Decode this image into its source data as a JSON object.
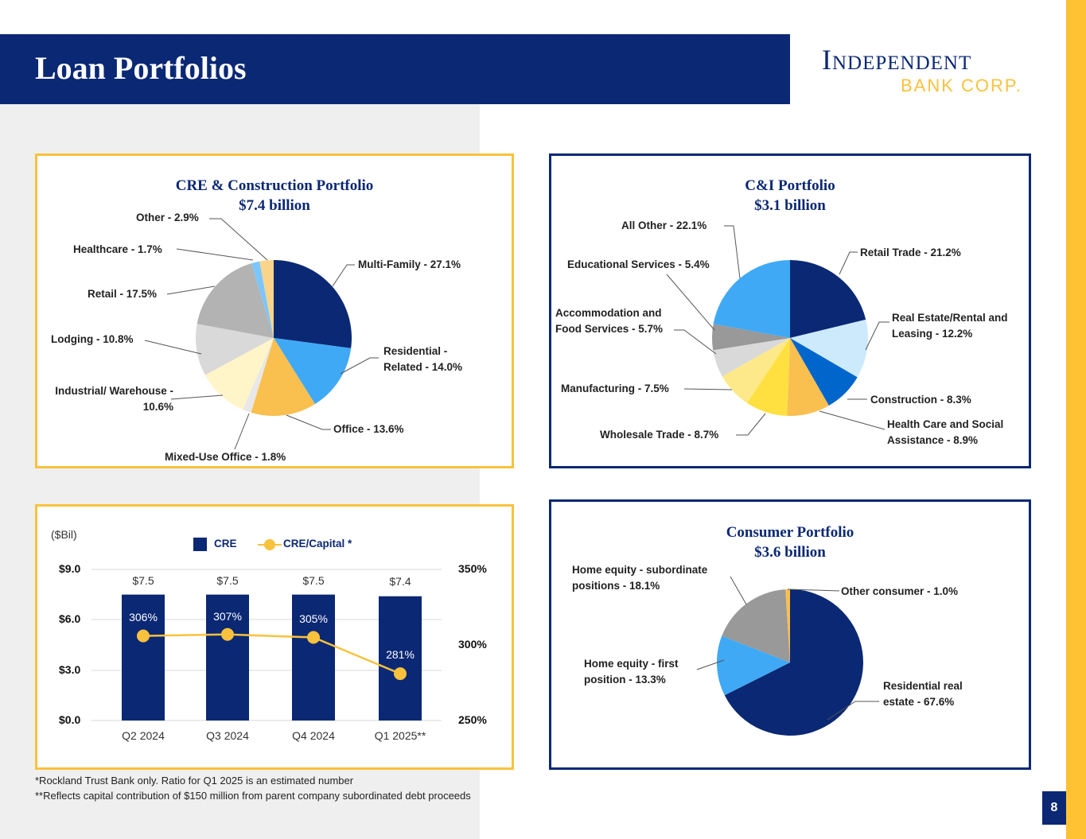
{
  "header": {
    "title": "Loan Portfolios",
    "logo_line1": "Independent",
    "logo_line2": "BANK CORP."
  },
  "page_number": "8",
  "colors": {
    "navy": "#0b2874",
    "gold": "#f9c23c",
    "panel": "#efefef"
  },
  "footnotes": [
    "*Rockland Trust Bank only.  Ratio for Q1 2025 is an estimated number",
    "**Reflects capital contribution of $150 million from parent company subordinated debt proceeds"
  ],
  "chart_data": [
    {
      "type": "pie",
      "title": "CRE & Construction Portfolio",
      "subtitle": "$7.4 billion",
      "slices": [
        {
          "label": "Multi-Family - 27.1%",
          "value": 27.1,
          "color": "#0b2874"
        },
        {
          "label": "Residential - Related - 14.0%",
          "value": 14.0,
          "color": "#3fa9f5"
        },
        {
          "label": "Office - 13.6%",
          "value": 13.6,
          "color": "#f9c04f"
        },
        {
          "label": "Mixed-Use Office - 1.8%",
          "value": 1.8,
          "color": "#e8e8e8"
        },
        {
          "label": "Industrial/ Warehouse - 10.6%",
          "value": 10.6,
          "color": "#fff5c8"
        },
        {
          "label": "Lodging - 10.8%",
          "value": 10.8,
          "color": "#d9d9d9"
        },
        {
          "label": "Retail - 17.5%",
          "value": 17.5,
          "color": "#b3b3b3"
        },
        {
          "label": "Healthcare - 1.7%",
          "value": 1.7,
          "color": "#7cc6ff"
        },
        {
          "label": "Other - 2.9%",
          "value": 2.9,
          "color": "#fad48a"
        }
      ]
    },
    {
      "type": "pie",
      "title": "C&I Portfolio",
      "subtitle": "$3.1 billion",
      "slices": [
        {
          "label": "Retail Trade - 21.2%",
          "value": 21.2,
          "color": "#0b2874"
        },
        {
          "label": "Real Estate/Rental and Leasing - 12.2%",
          "value": 12.2,
          "color": "#cdeafd"
        },
        {
          "label": "Construction - 8.3%",
          "value": 8.3,
          "color": "#0066cc"
        },
        {
          "label": "Health Care and Social Assistance - 8.9%",
          "value": 8.9,
          "color": "#f9c04f"
        },
        {
          "label": "Wholesale Trade - 8.7%",
          "value": 8.7,
          "color": "#ffe040"
        },
        {
          "label": "Manufacturing - 7.5%",
          "value": 7.5,
          "color": "#fde98a"
        },
        {
          "label": "Accommodation and Food Services - 5.7%",
          "value": 5.7,
          "color": "#d9d9d9"
        },
        {
          "label": "Educational Services - 5.4%",
          "value": 5.4,
          "color": "#999999"
        },
        {
          "label": "All Other  - 22.1%",
          "value": 22.1,
          "color": "#3fa9f5"
        }
      ]
    },
    {
      "type": "pie",
      "title": "Consumer Portfolio",
      "subtitle": "$3.6 billion",
      "slices": [
        {
          "label": "Residential real estate - 67.6%",
          "value": 67.6,
          "color": "#0b2874"
        },
        {
          "label": "Home equity - first position - 13.3%",
          "value": 13.3,
          "color": "#3fa9f5"
        },
        {
          "label": "Home equity - subordinate positions - 18.1%",
          "value": 18.1,
          "color": "#999999"
        },
        {
          "label": "Other consumer - 1.0%",
          "value": 1.0,
          "color": "#f9c04f"
        }
      ]
    },
    {
      "type": "bar",
      "unit_label": "($Bil)",
      "categories": [
        "Q2 2024",
        "Q3 2024",
        "Q4 2024",
        "Q1 2025**"
      ],
      "series": [
        {
          "name": "CRE",
          "type": "bar",
          "values": [
            7.5,
            7.5,
            7.5,
            7.4
          ],
          "labels": [
            "$7.5",
            "$7.5",
            "$7.5",
            "$7.4"
          ],
          "color": "#0b2874",
          "axis": "left"
        },
        {
          "name": "CRE/Capital *",
          "type": "line",
          "values": [
            306,
            307,
            305,
            281
          ],
          "labels": [
            "306%",
            "307%",
            "305%",
            "281%"
          ],
          "color": "#f9c23c",
          "axis": "right"
        }
      ],
      "y_left": {
        "ticks": [
          "$0.0",
          "$3.0",
          "$6.0",
          "$9.0"
        ],
        "range": [
          0,
          9
        ]
      },
      "y_right": {
        "ticks": [
          "250%",
          "300%",
          "350%"
        ],
        "range": [
          250,
          350
        ]
      },
      "grid": true,
      "legend": "top"
    }
  ]
}
